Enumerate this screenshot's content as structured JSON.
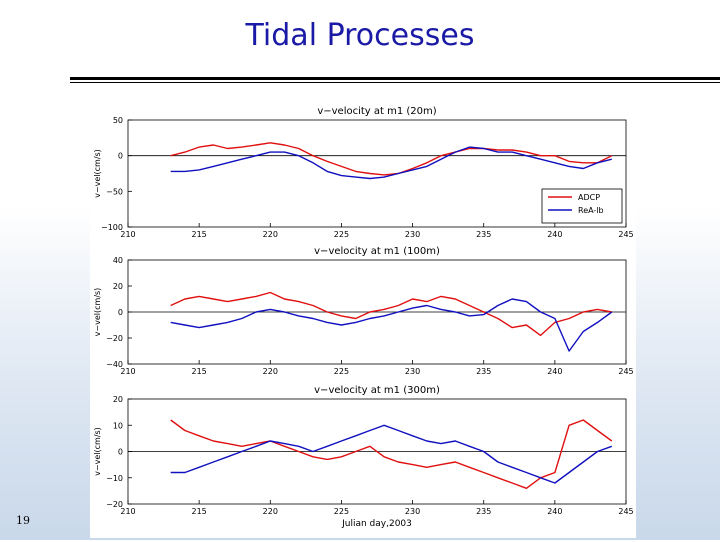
{
  "slide": {
    "title": "Tidal Processes",
    "page_number": "19"
  },
  "chart_data": [
    {
      "type": "line",
      "title": "v−velocity at m1 (20m)",
      "ylabel": "v−vel(cm/s)",
      "xlabel": "",
      "xlim": [
        210,
        245
      ],
      "ylim": [
        -100,
        50
      ],
      "xticks": [
        "210",
        "215",
        "220",
        "225",
        "230",
        "235",
        "240",
        "245"
      ],
      "yticks": [
        "50",
        "0",
        "−50",
        "−100"
      ],
      "ytick_values": [
        50,
        0,
        -50,
        -100
      ],
      "grid": false,
      "zero_line": true,
      "legend": "lower-right",
      "series": [
        {
          "name": "ADCP",
          "color": "#e01010",
          "x": [
            213,
            214,
            215,
            216,
            217,
            218,
            219,
            220,
            221,
            222,
            223,
            224,
            225,
            226,
            227,
            228,
            229,
            230,
            231,
            232,
            233,
            234,
            235,
            236,
            237,
            238,
            239,
            240,
            241,
            242,
            243,
            244
          ],
          "y": [
            0,
            5,
            12,
            15,
            10,
            12,
            15,
            18,
            15,
            10,
            0,
            -8,
            -15,
            -22,
            -25,
            -27,
            -25,
            -18,
            -10,
            0,
            5,
            10,
            10,
            8,
            8,
            5,
            0,
            0,
            -8,
            -10,
            -10,
            0
          ]
        },
        {
          "name": "ReA-lb",
          "color": "#1010c0",
          "x": [
            213,
            214,
            215,
            216,
            217,
            218,
            219,
            220,
            221,
            222,
            223,
            224,
            225,
            226,
            227,
            228,
            229,
            230,
            231,
            232,
            233,
            234,
            235,
            236,
            237,
            238,
            239,
            240,
            241,
            242,
            243,
            244
          ],
          "y": [
            -22,
            -22,
            -20,
            -15,
            -10,
            -5,
            0,
            5,
            5,
            0,
            -10,
            -22,
            -28,
            -30,
            -32,
            -30,
            -25,
            -20,
            -15,
            -5,
            5,
            12,
            10,
            5,
            5,
            0,
            -5,
            -10,
            -15,
            -18,
            -10,
            -5
          ]
        }
      ]
    },
    {
      "type": "line",
      "title": "v−velocity at m1 (100m)",
      "ylabel": "v−vel(cm/s)",
      "xlabel": "",
      "xlim": [
        210,
        245
      ],
      "ylim": [
        -40,
        40
      ],
      "xticks": [
        "210",
        "215",
        "220",
        "225",
        "230",
        "235",
        "240",
        "245"
      ],
      "yticks": [
        "40",
        "20",
        "0",
        "−20",
        "−40"
      ],
      "ytick_values": [
        40,
        20,
        0,
        -20,
        -40
      ],
      "grid": false,
      "zero_line": true,
      "series": [
        {
          "name": "",
          "color": "#e01010",
          "x": [
            213,
            214,
            215,
            216,
            217,
            218,
            219,
            220,
            221,
            222,
            223,
            224,
            225,
            226,
            227,
            228,
            229,
            230,
            231,
            232,
            233,
            234,
            235,
            236,
            237,
            238,
            239,
            240,
            241,
            242,
            243,
            244
          ],
          "y": [
            5,
            10,
            12,
            10,
            8,
            10,
            12,
            15,
            10,
            8,
            5,
            0,
            -3,
            -5,
            0,
            2,
            5,
            10,
            8,
            12,
            10,
            5,
            0,
            -5,
            -12,
            -10,
            -18,
            -8,
            -5,
            0,
            2,
            0
          ]
        },
        {
          "name": "",
          "color": "#1010c0",
          "x": [
            213,
            214,
            215,
            216,
            217,
            218,
            219,
            220,
            221,
            222,
            223,
            224,
            225,
            226,
            227,
            228,
            229,
            230,
            231,
            232,
            233,
            234,
            235,
            236,
            237,
            238,
            239,
            240,
            241,
            242,
            243,
            244
          ],
          "y": [
            -8,
            -10,
            -12,
            -10,
            -8,
            -5,
            0,
            2,
            0,
            -3,
            -5,
            -8,
            -10,
            -8,
            -5,
            -3,
            0,
            3,
            5,
            2,
            0,
            -3,
            -2,
            5,
            10,
            8,
            0,
            -5,
            -30,
            -15,
            -8,
            0
          ]
        }
      ]
    },
    {
      "type": "line",
      "title": "v−velocity at m1 (300m)",
      "ylabel": "v−vel(cm/s)",
      "xlabel": "Julian day,2003",
      "xlim": [
        210,
        245
      ],
      "ylim": [
        -20,
        20
      ],
      "xticks": [
        "210",
        "215",
        "220",
        "225",
        "230",
        "235",
        "240",
        "245"
      ],
      "yticks": [
        "20",
        "10",
        "0",
        "−10",
        "−20"
      ],
      "ytick_values": [
        20,
        10,
        0,
        -10,
        -20
      ],
      "grid": false,
      "zero_line": true,
      "series": [
        {
          "name": "",
          "color": "#e01010",
          "x": [
            213,
            214,
            215,
            216,
            217,
            218,
            219,
            220,
            221,
            222,
            223,
            224,
            225,
            226,
            227,
            228,
            229,
            230,
            231,
            232,
            233,
            234,
            235,
            236,
            237,
            238,
            239,
            240,
            241,
            242,
            243,
            244
          ],
          "y": [
            12,
            8,
            6,
            4,
            3,
            2,
            3,
            4,
            2,
            0,
            -2,
            -3,
            -2,
            0,
            2,
            -2,
            -4,
            -5,
            -6,
            -5,
            -4,
            -6,
            -8,
            -10,
            -12,
            -14,
            -10,
            -8,
            10,
            12,
            8,
            4
          ]
        },
        {
          "name": "",
          "color": "#1010c0",
          "x": [
            213,
            214,
            215,
            216,
            217,
            218,
            219,
            220,
            221,
            222,
            223,
            224,
            225,
            226,
            227,
            228,
            229,
            230,
            231,
            232,
            233,
            234,
            235,
            236,
            237,
            238,
            239,
            240,
            241,
            242,
            243,
            244
          ],
          "y": [
            -8,
            -8,
            -6,
            -4,
            -2,
            0,
            2,
            4,
            3,
            2,
            0,
            2,
            4,
            6,
            8,
            10,
            8,
            6,
            4,
            3,
            4,
            2,
            0,
            -4,
            -6,
            -8,
            -10,
            -12,
            -8,
            -4,
            0,
            2
          ]
        }
      ]
    }
  ]
}
